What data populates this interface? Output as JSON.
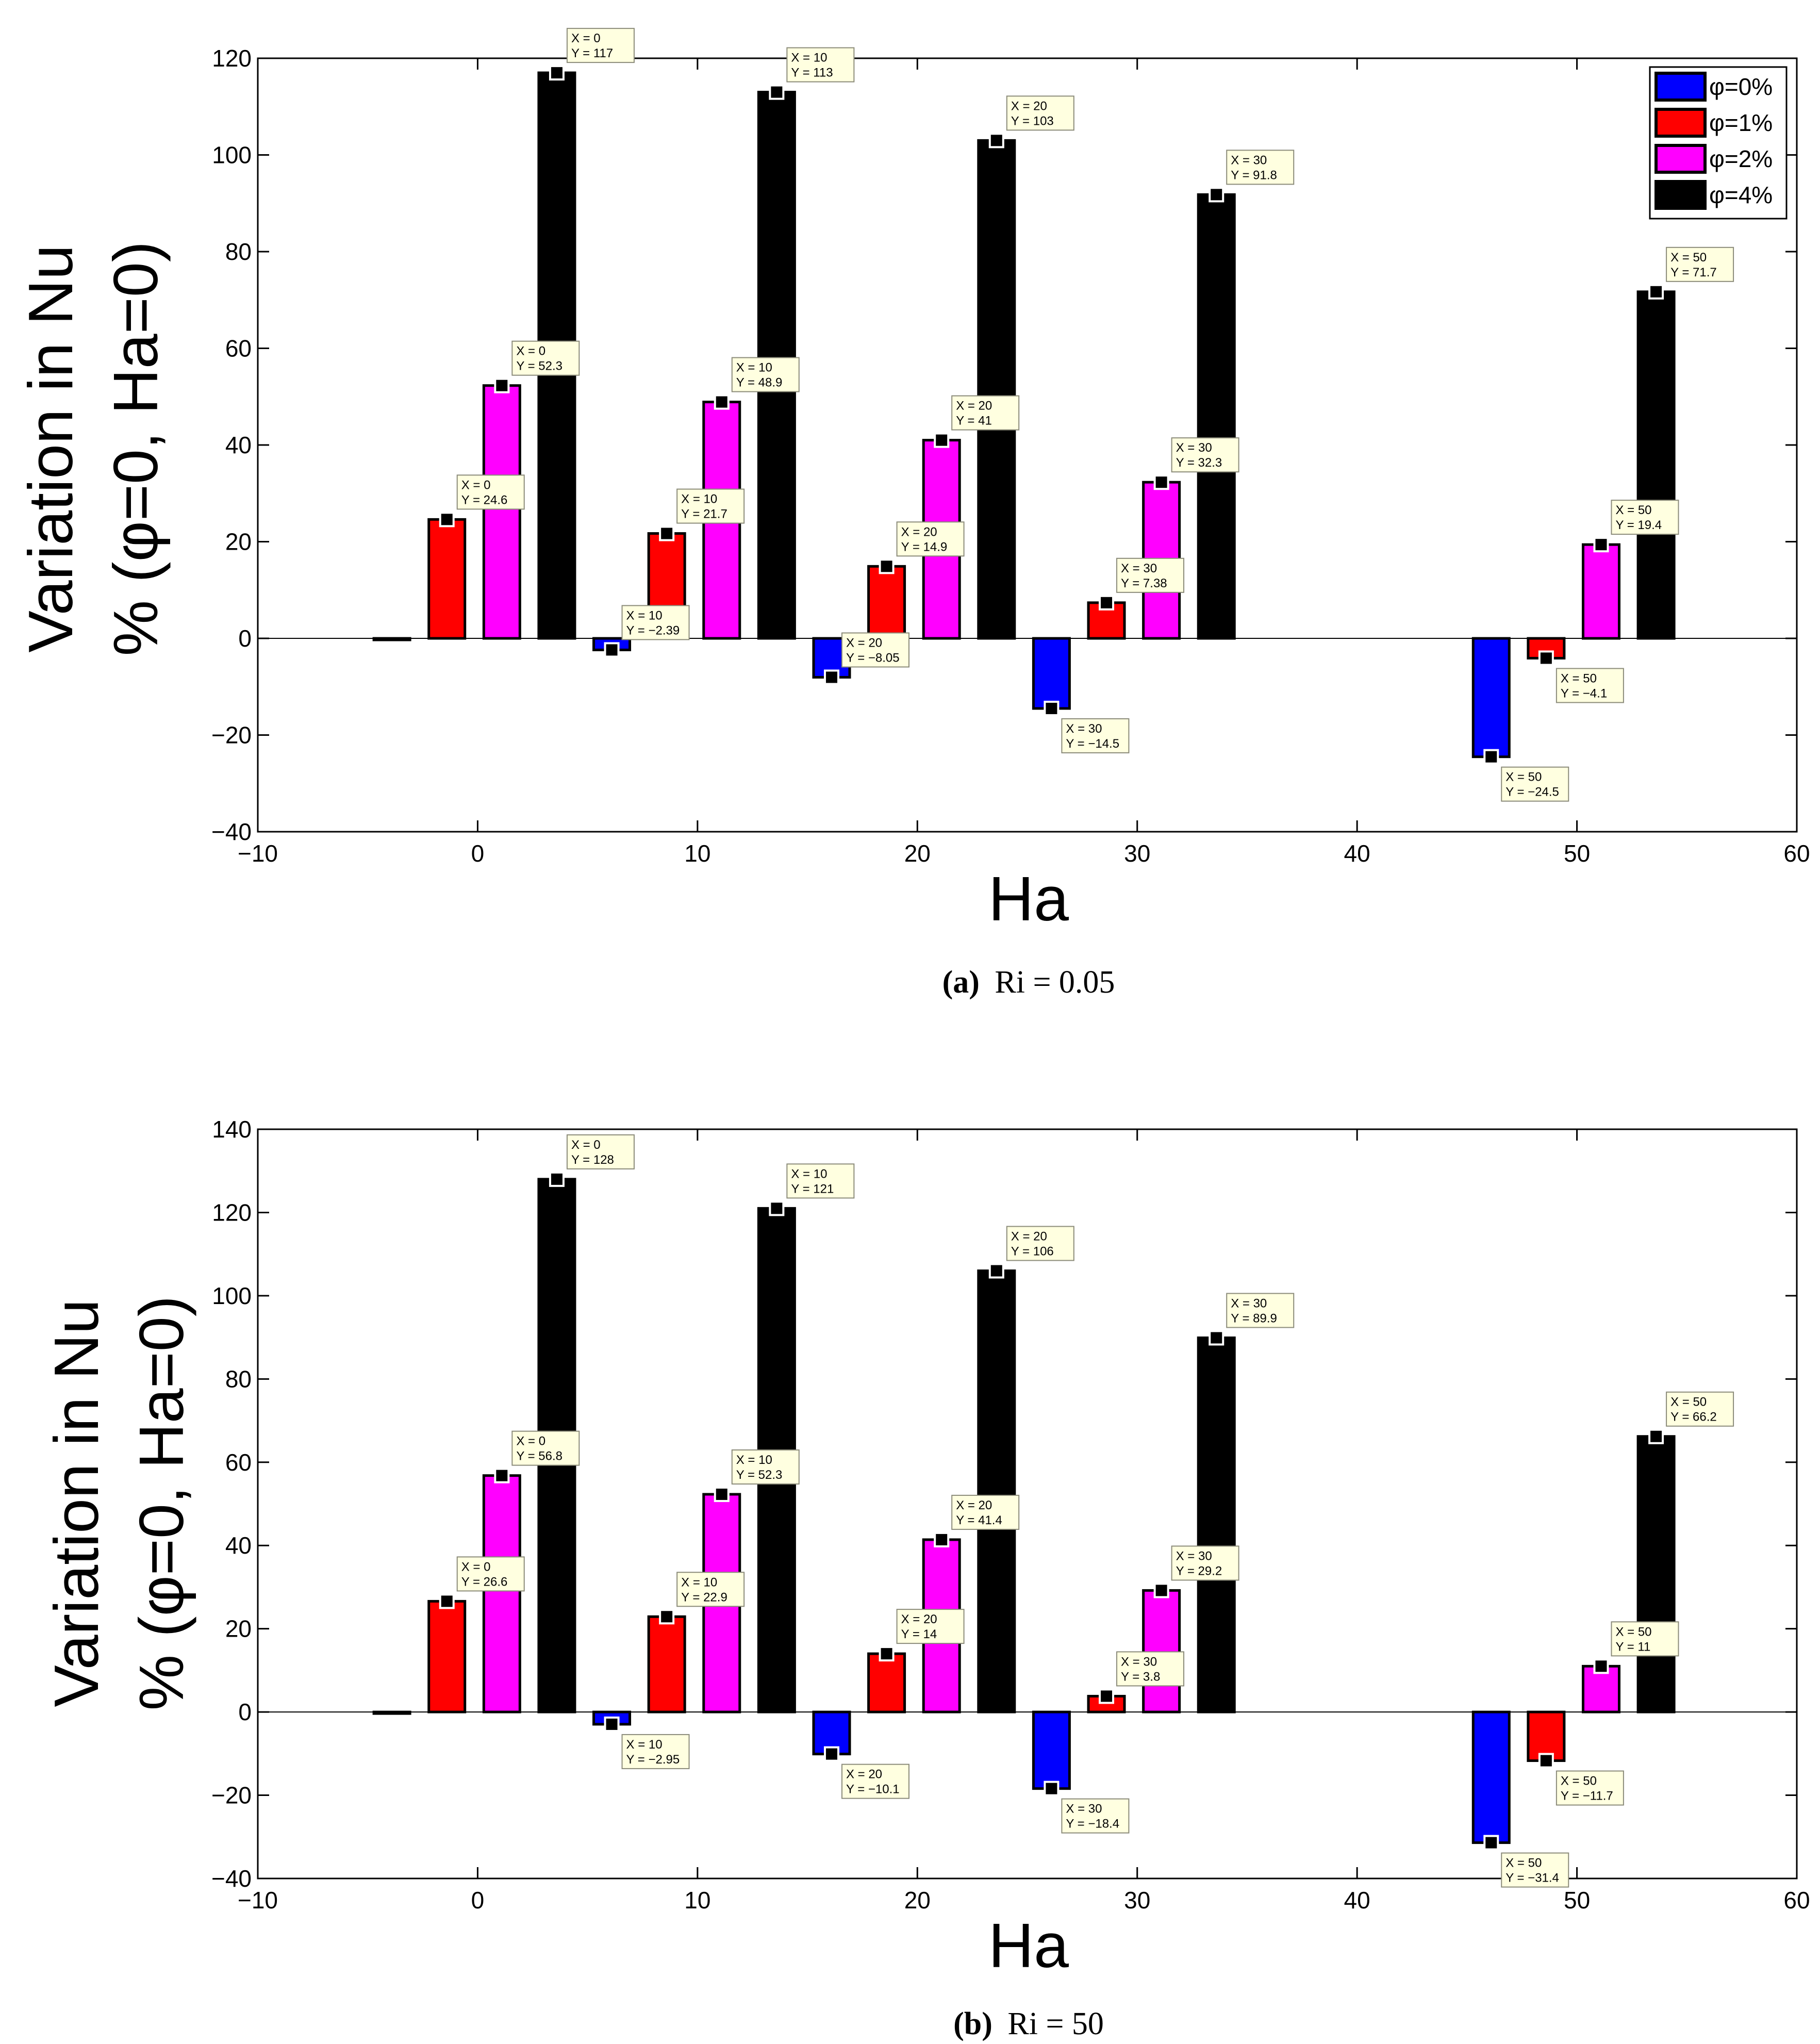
{
  "chart_data": [
    {
      "id": "a",
      "type": "bar",
      "xlabel": "Ha",
      "ylabel_line1": "Variation in Nu",
      "ylabel_line2": "% (φ=0, Ha=0)",
      "xlim": [
        -10,
        60
      ],
      "ylim": [
        -40,
        120
      ],
      "xticks": [
        -10,
        0,
        10,
        20,
        30,
        40,
        50,
        60
      ],
      "xtick_labels": [
        "−10",
        "0",
        "10",
        "20",
        "30",
        "40",
        "50",
        "60"
      ],
      "yticks": [
        -40,
        -20,
        0,
        20,
        40,
        60,
        80,
        100,
        120
      ],
      "ytick_labels": [
        "−40",
        "−20",
        "0",
        "20",
        "40",
        "60",
        "80",
        "100",
        "120"
      ],
      "categories": [
        0,
        10,
        20,
        30,
        50
      ],
      "series": [
        {
          "name": "φ=0%",
          "color": "#0000ff",
          "values": [
            0,
            -2.39,
            -8.05,
            -14.5,
            -24.5
          ]
        },
        {
          "name": "φ=1%",
          "color": "#ff0000",
          "values": [
            24.6,
            21.7,
            14.9,
            7.38,
            -4.1
          ]
        },
        {
          "name": "φ=2%",
          "color": "#ff00ff",
          "values": [
            52.3,
            48.9,
            41,
            32.3,
            19.4
          ]
        },
        {
          "name": "φ=4%",
          "color": "#000000",
          "values": [
            117,
            113,
            103,
            91.8,
            71.7
          ]
        }
      ],
      "datatips": [
        {
          "series": 3,
          "cat": 0,
          "x_text": "X = 0",
          "y_text": "Y = 117"
        },
        {
          "series": 3,
          "cat": 1,
          "x_text": "X = 10",
          "y_text": "Y = 113"
        },
        {
          "series": 3,
          "cat": 2,
          "x_text": "X = 20",
          "y_text": "Y = 103"
        },
        {
          "series": 3,
          "cat": 3,
          "x_text": "X = 30",
          "y_text": "Y = 91.8"
        },
        {
          "series": 3,
          "cat": 4,
          "x_text": "X = 50",
          "y_text": "Y = 71.7"
        },
        {
          "series": 2,
          "cat": 0,
          "x_text": "X = 0",
          "y_text": "Y = 52.3"
        },
        {
          "series": 2,
          "cat": 1,
          "x_text": "X = 10",
          "y_text": "Y = 48.9"
        },
        {
          "series": 2,
          "cat": 2,
          "x_text": "X = 20",
          "y_text": "Y = 41"
        },
        {
          "series": 2,
          "cat": 3,
          "x_text": "X = 30",
          "y_text": "Y = 32.3"
        },
        {
          "series": 2,
          "cat": 4,
          "x_text": "X = 50",
          "y_text": "Y = 19.4"
        },
        {
          "series": 1,
          "cat": 0,
          "x_text": "X = 0",
          "y_text": "Y = 24.6"
        },
        {
          "series": 1,
          "cat": 1,
          "x_text": "X = 10",
          "y_text": "Y = 21.7"
        },
        {
          "series": 1,
          "cat": 2,
          "x_text": "X = 20",
          "y_text": "Y = 14.9"
        },
        {
          "series": 1,
          "cat": 3,
          "x_text": "X = 30",
          "y_text": "Y = 7.38"
        },
        {
          "series": 1,
          "cat": 4,
          "x_text": "X = 50",
          "y_text": "Y = −4.1",
          "below": true
        },
        {
          "series": 0,
          "cat": 1,
          "x_text": "X = 10",
          "y_text": "Y = −2.39"
        },
        {
          "series": 0,
          "cat": 2,
          "x_text": "X = 20",
          "y_text": "Y = −8.05"
        },
        {
          "series": 0,
          "cat": 3,
          "x_text": "X = 30",
          "y_text": "Y = −14.5",
          "below": true
        },
        {
          "series": 0,
          "cat": 4,
          "x_text": "X = 50",
          "y_text": "Y = −24.5",
          "below": true
        }
      ],
      "legend": {
        "placement": "top-right",
        "entries": [
          "φ=0%",
          "φ=1%",
          "φ=2%",
          "φ=4%"
        ]
      },
      "caption_label": "(a)",
      "caption_text": "Ri = 0.05"
    },
    {
      "id": "b",
      "type": "bar",
      "xlabel": "Ha",
      "ylabel_line1": "Variation in Nu",
      "ylabel_line2": "% (φ=0, Ha=0)",
      "xlim": [
        -10,
        60
      ],
      "ylim": [
        -40,
        140
      ],
      "xticks": [
        -10,
        0,
        10,
        20,
        30,
        40,
        50,
        60
      ],
      "xtick_labels": [
        "−10",
        "0",
        "10",
        "20",
        "30",
        "40",
        "50",
        "60"
      ],
      "yticks": [
        -40,
        -20,
        0,
        20,
        40,
        60,
        80,
        100,
        120,
        140
      ],
      "ytick_labels": [
        "−40",
        "−20",
        "0",
        "20",
        "40",
        "60",
        "80",
        "100",
        "120",
        "140"
      ],
      "categories": [
        0,
        10,
        20,
        30,
        50
      ],
      "series": [
        {
          "name": "φ=0%",
          "color": "#0000ff",
          "values": [
            0,
            -2.95,
            -10.1,
            -18.4,
            -31.4
          ]
        },
        {
          "name": "φ=1%",
          "color": "#ff0000",
          "values": [
            26.6,
            22.9,
            14,
            3.8,
            -11.7
          ]
        },
        {
          "name": "φ=2%",
          "color": "#ff00ff",
          "values": [
            56.8,
            52.3,
            41.4,
            29.2,
            11
          ]
        },
        {
          "name": "φ=4%",
          "color": "#000000",
          "values": [
            128,
            121,
            106,
            89.9,
            66.2
          ]
        }
      ],
      "datatips": [
        {
          "series": 3,
          "cat": 0,
          "x_text": "X = 0",
          "y_text": "Y = 128"
        },
        {
          "series": 3,
          "cat": 1,
          "x_text": "X = 10",
          "y_text": "Y = 121"
        },
        {
          "series": 3,
          "cat": 2,
          "x_text": "X = 20",
          "y_text": "Y = 106"
        },
        {
          "series": 3,
          "cat": 3,
          "x_text": "X = 30",
          "y_text": "Y = 89.9"
        },
        {
          "series": 3,
          "cat": 4,
          "x_text": "X = 50",
          "y_text": "Y = 66.2"
        },
        {
          "series": 2,
          "cat": 0,
          "x_text": "X = 0",
          "y_text": "Y = 56.8"
        },
        {
          "series": 2,
          "cat": 1,
          "x_text": "X = 10",
          "y_text": "Y = 52.3"
        },
        {
          "series": 2,
          "cat": 2,
          "x_text": "X = 20",
          "y_text": "Y = 41.4"
        },
        {
          "series": 2,
          "cat": 3,
          "x_text": "X = 30",
          "y_text": "Y = 29.2"
        },
        {
          "series": 2,
          "cat": 4,
          "x_text": "X = 50",
          "y_text": "Y = 11"
        },
        {
          "series": 1,
          "cat": 0,
          "x_text": "X = 0",
          "y_text": "Y = 26.6"
        },
        {
          "series": 1,
          "cat": 1,
          "x_text": "X = 10",
          "y_text": "Y = 22.9"
        },
        {
          "series": 1,
          "cat": 2,
          "x_text": "X = 20",
          "y_text": "Y = 14"
        },
        {
          "series": 1,
          "cat": 3,
          "x_text": "X = 30",
          "y_text": "Y = 3.8"
        },
        {
          "series": 1,
          "cat": 4,
          "x_text": "X = 50",
          "y_text": "Y = −11.7",
          "below": true
        },
        {
          "series": 0,
          "cat": 1,
          "x_text": "X = 10",
          "y_text": "Y = −2.95",
          "below": true
        },
        {
          "series": 0,
          "cat": 2,
          "x_text": "X = 20",
          "y_text": "Y = −10.1",
          "below": true
        },
        {
          "series": 0,
          "cat": 3,
          "x_text": "X = 30",
          "y_text": "Y = −18.4",
          "below": true
        },
        {
          "series": 0,
          "cat": 4,
          "x_text": "X = 50",
          "y_text": "Y = −31.4",
          "below": true
        }
      ],
      "legend": null,
      "caption_label": "(b)",
      "caption_text": "Ri = 50"
    }
  ]
}
